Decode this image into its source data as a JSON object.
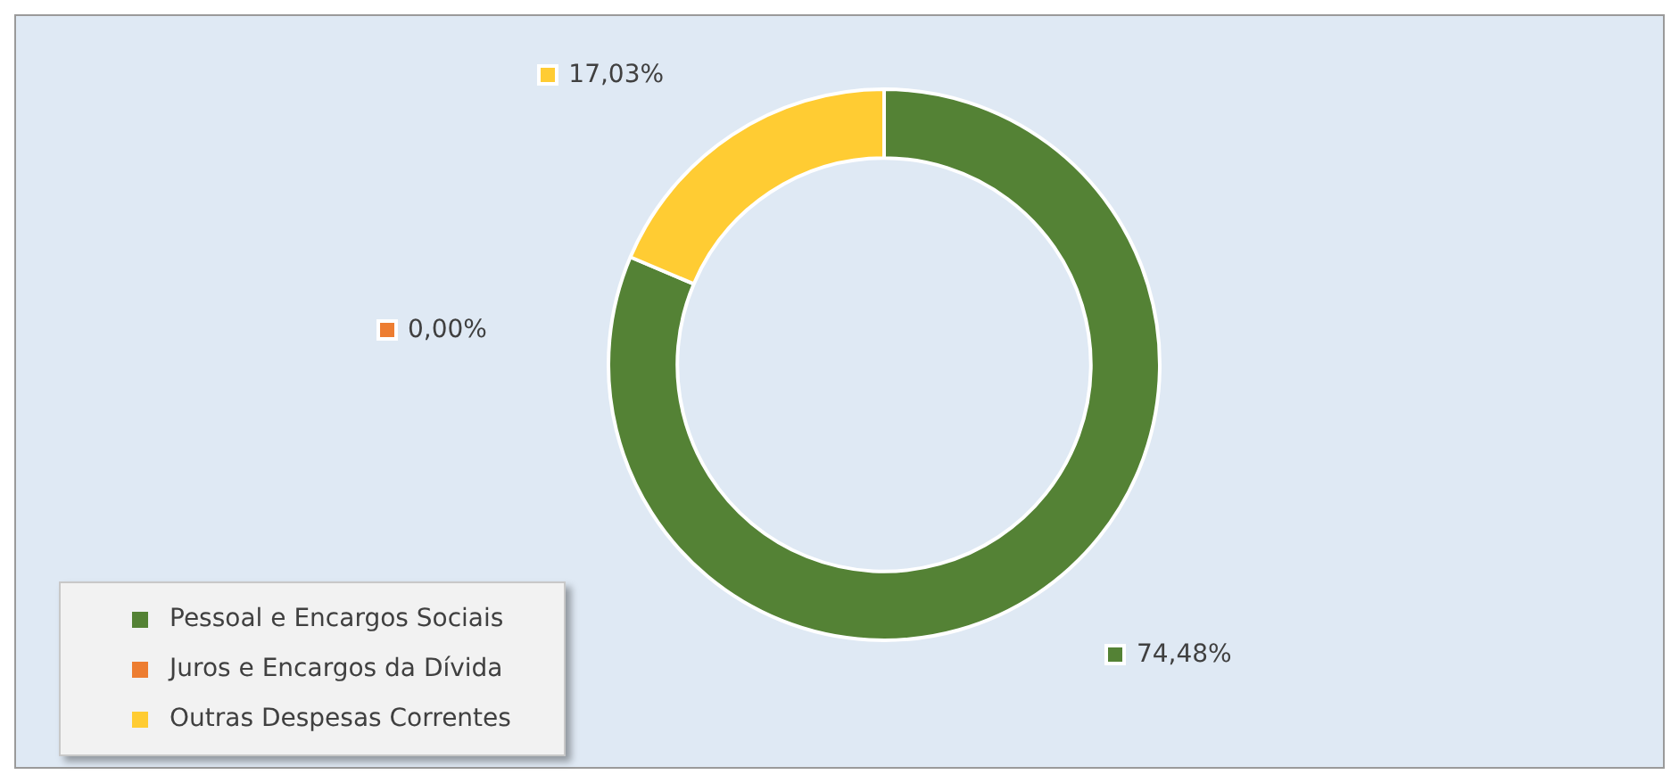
{
  "chart_data": {
    "type": "donut",
    "categories": [
      "Pessoal e Encargos Sociais",
      "Juros e Encargos da Dívida",
      "Outras Despesas Correntes"
    ],
    "values": [
      74.48,
      0,
      17.03
    ],
    "colors": [
      "#548235",
      "#ed7d31",
      "#ffcc33"
    ],
    "value_labels": [
      "74,48%",
      "0,00%",
      "17,03%"
    ],
    "legend": "bottom left"
  }
}
